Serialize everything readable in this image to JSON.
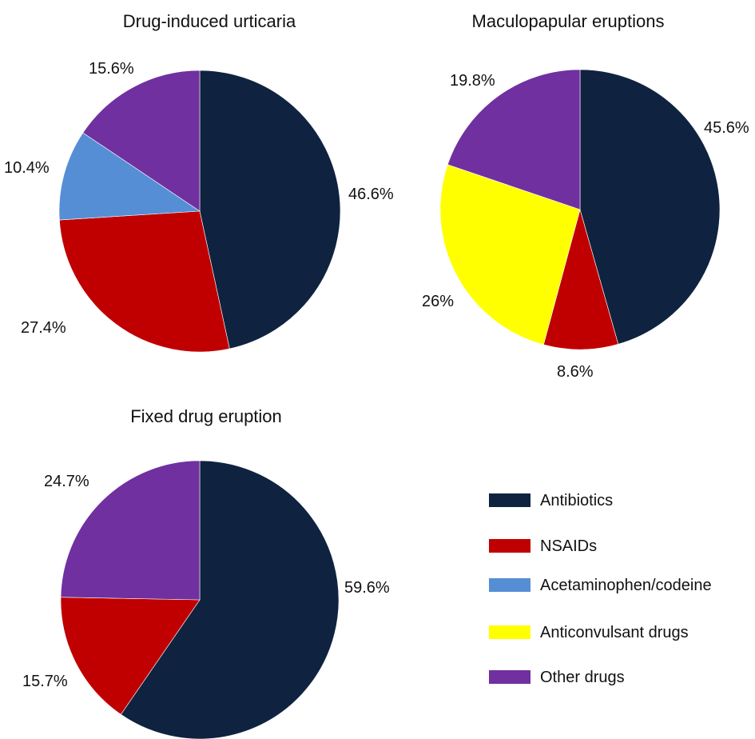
{
  "colors": {
    "Antibiotics": "#0f2340",
    "NSAIDs": "#c00000",
    "Acetaminophen/codeine": "#558ed5",
    "Anticonvulsant drugs": "#ffff00",
    "Other drugs": "#7030a0"
  },
  "chart_data": [
    {
      "type": "pie",
      "title": "Drug-induced urticaria",
      "categories": [
        "Antibiotics",
        "NSAIDs",
        "Acetaminophen/codeine",
        "Other drugs"
      ],
      "values": [
        46.6,
        27.4,
        10.4,
        15.6
      ],
      "labels": [
        "46.6%",
        "27.4%",
        "10.4%",
        "15.6%"
      ],
      "start": "12 o'clock",
      "direction": "clockwise"
    },
    {
      "type": "pie",
      "title": "Maculopapular eruptions",
      "categories": [
        "Antibiotics",
        "NSAIDs",
        "Anticonvulsant drugs",
        "Other drugs"
      ],
      "values": [
        45.6,
        8.6,
        26,
        19.8
      ],
      "labels": [
        "45.6%",
        "8.6%",
        "26%",
        "19.8%"
      ],
      "start": "12 o'clock",
      "direction": "clockwise"
    },
    {
      "type": "pie",
      "title": "Fixed drug eruption",
      "categories": [
        "Antibiotics",
        "NSAIDs",
        "Other drugs"
      ],
      "values": [
        59.6,
        15.7,
        24.7
      ],
      "labels": [
        "59.6%",
        "15.7%",
        "24.7%"
      ],
      "start": "12 o'clock",
      "direction": "clockwise"
    }
  ],
  "legend": {
    "placement": "bottom-right",
    "items": [
      "Antibiotics",
      "NSAIDs",
      "Acetaminophen/codeine",
      "Anticonvulsant drugs",
      "Other drugs"
    ]
  }
}
